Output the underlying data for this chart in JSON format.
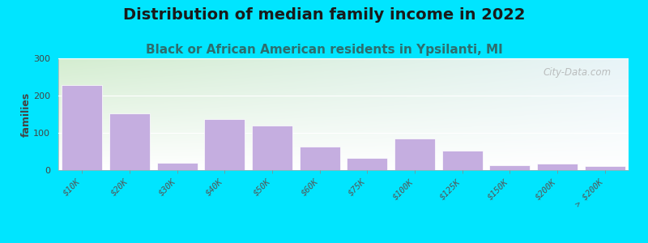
{
  "title": "Distribution of median family income in 2022",
  "subtitle": "Black or African American residents in Ypsilanti, MI",
  "ylabel": "families",
  "categories": [
    "$10K",
    "$20K",
    "$30K",
    "$40K",
    "$50K",
    "$60K",
    "$75K",
    "$100K",
    "$125K",
    "$150K",
    "$200K",
    "> $200K"
  ],
  "values": [
    228,
    152,
    20,
    138,
    120,
    62,
    33,
    85,
    52,
    13,
    18,
    10
  ],
  "bar_color": "#c5aee0",
  "bar_edge_color": "#b39ddb",
  "ylim": [
    0,
    300
  ],
  "yticks": [
    0,
    100,
    200,
    300
  ],
  "background_color": "#00e5ff",
  "plot_bg_color_topleft": "#d6ecd2",
  "plot_bg_color_topright": "#e8f4f8",
  "plot_bg_color_bottom": "#ffffff",
  "title_fontsize": 14,
  "subtitle_fontsize": 11,
  "title_color": "#1a1a1a",
  "subtitle_color": "#2d6e6e",
  "watermark_text": "City-Data.com",
  "watermark_color": "#aaaaaa"
}
